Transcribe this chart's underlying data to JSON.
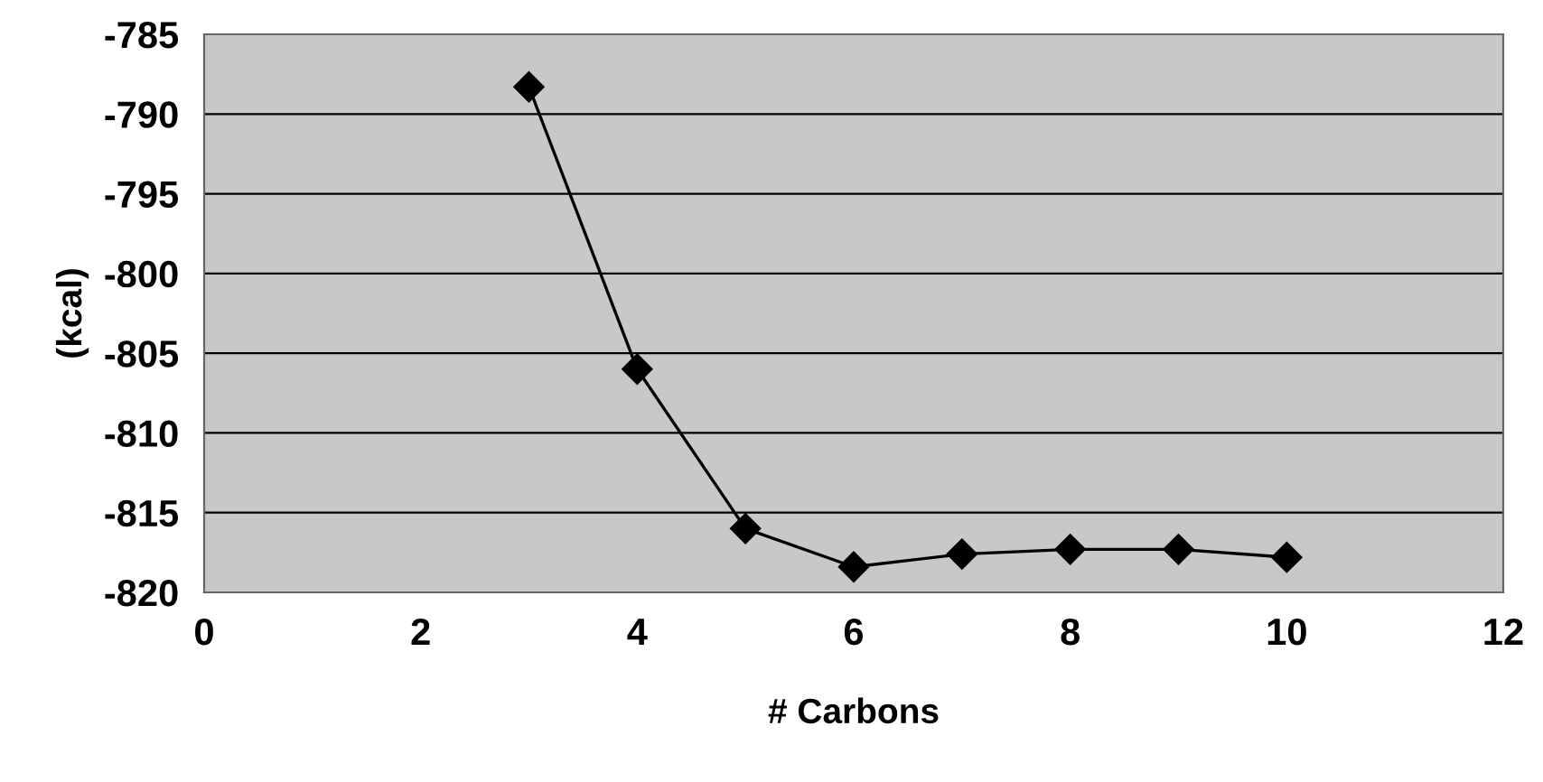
{
  "chart_data": {
    "type": "line",
    "xlabel": "# Carbons",
    "ylabel": "(kcal)",
    "x": [
      3,
      4,
      5,
      6,
      7,
      8,
      9,
      10
    ],
    "series": [
      {
        "color": "#000000",
        "values": [
          -788.3,
          -806.0,
          -816.0,
          -818.4,
          -817.6,
          -817.3,
          -817.3,
          -817.8
        ]
      }
    ],
    "xlim": [
      0,
      12
    ],
    "xticks": [
      0,
      2,
      4,
      6,
      8,
      10,
      12
    ],
    "ylim": [
      -820,
      -785
    ],
    "yticks": [
      -820,
      -815,
      -810,
      -805,
      -800,
      -795,
      -790,
      -785
    ],
    "grid": "y",
    "marker": "diamond",
    "line_style": "solid"
  }
}
